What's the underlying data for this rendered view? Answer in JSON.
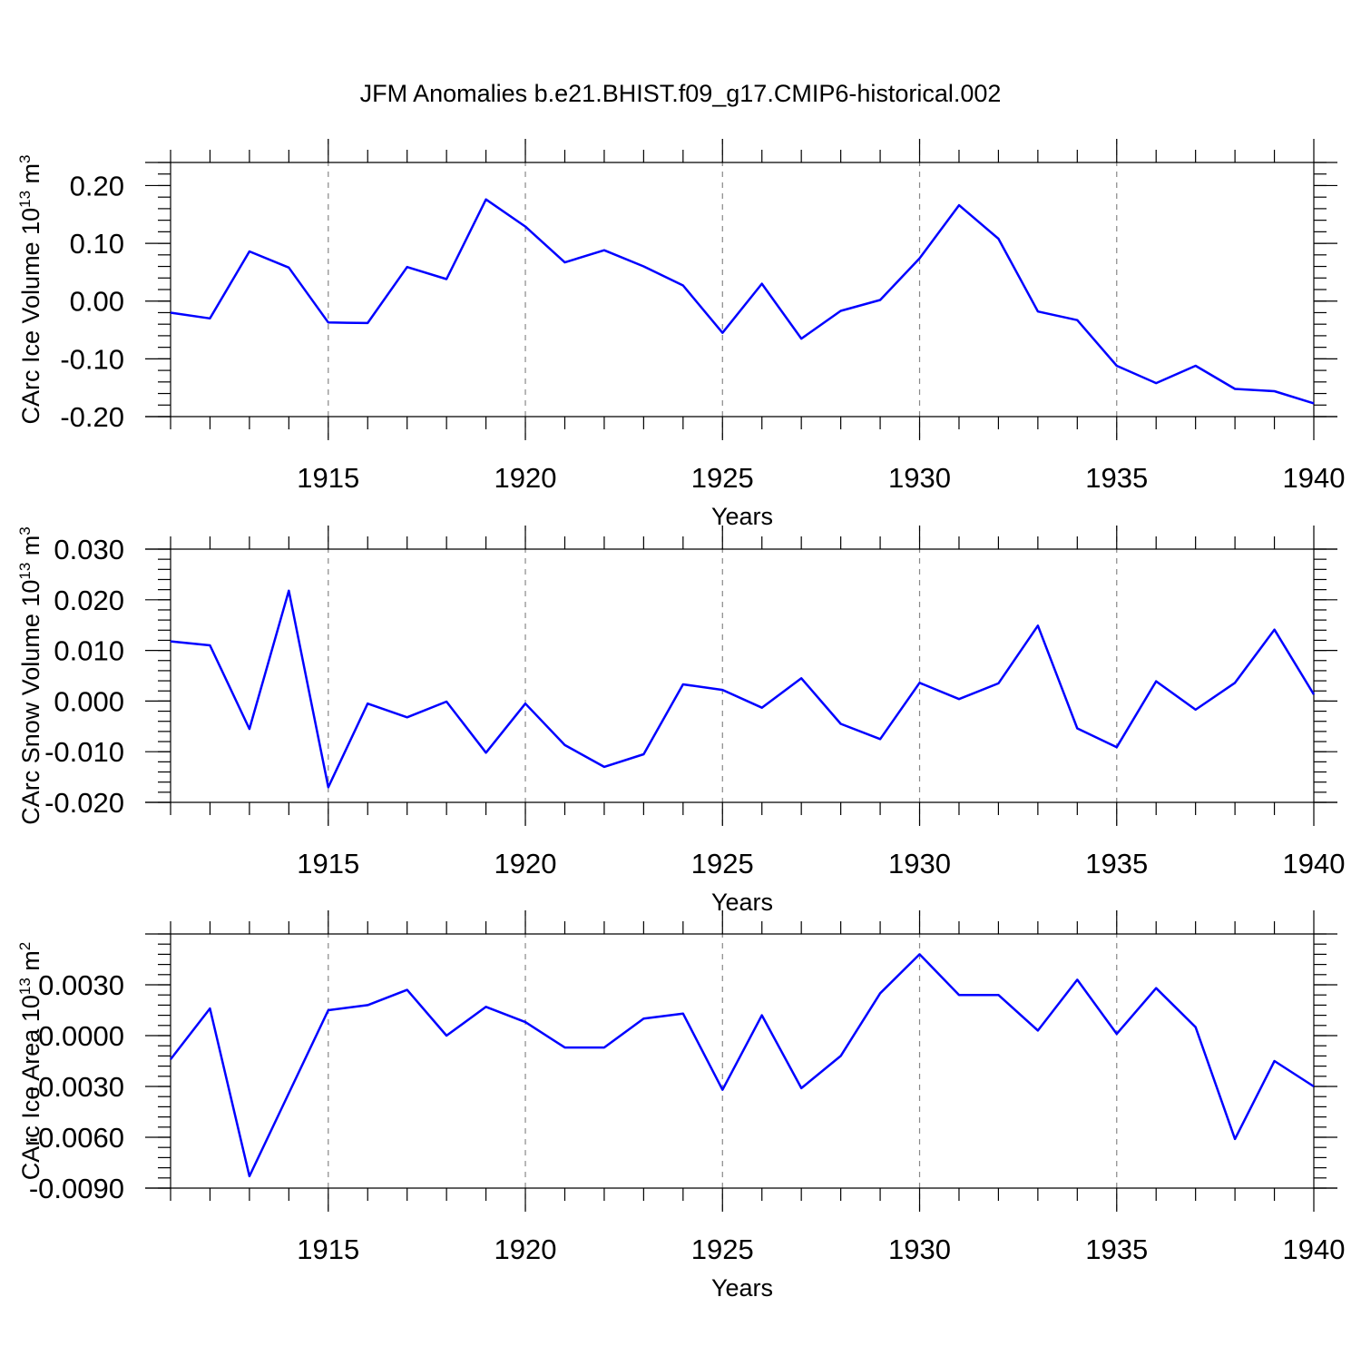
{
  "title": "JFM Anomalies b.e21.BHIST.f09_g17.CMIP6-historical.002",
  "chart_data": [
    {
      "type": "line",
      "name": "ice-volume",
      "ylabel": "CArc Ice Volume",
      "ylabel_unit": "10",
      "ylabel_exp": "13",
      "ylabel_unit2": " m",
      "ylabel_exp2": "3",
      "xlabel": "Years",
      "xlim": [
        1911,
        1940
      ],
      "ylim": [
        -0.2,
        0.24
      ],
      "yticks": [
        -0.2,
        -0.1,
        0.0,
        0.1,
        0.2
      ],
      "ytick_labels": [
        "-0.20",
        "-0.10",
        "0.00",
        "0.10",
        "0.20"
      ],
      "ytick_minor": 0.02,
      "xticks": [
        1915,
        1920,
        1925,
        1930,
        1935,
        1940
      ],
      "xtick_labels": [
        "1915",
        "1920",
        "1925",
        "1930",
        "1935",
        "1940"
      ],
      "x": [
        1911,
        1912,
        1913,
        1914,
        1915,
        1916,
        1917,
        1918,
        1919,
        1920,
        1921,
        1922,
        1923,
        1924,
        1925,
        1926,
        1927,
        1928,
        1929,
        1930,
        1931,
        1932,
        1933,
        1934,
        1935,
        1936,
        1937,
        1938,
        1939,
        1940
      ],
      "values": [
        -0.02,
        -0.03,
        0.086,
        0.058,
        -0.037,
        -0.038,
        0.059,
        0.038,
        0.176,
        0.129,
        0.067,
        0.088,
        0.06,
        0.027,
        -0.055,
        0.03,
        -0.065,
        -0.017,
        0.002,
        0.074,
        0.166,
        0.108,
        -0.018,
        -0.033,
        -0.112,
        -0.142,
        -0.112,
        -0.152,
        -0.156,
        -0.177
      ]
    },
    {
      "type": "line",
      "name": "snow-volume",
      "ylabel": "CArc Snow Volume",
      "ylabel_unit": "10",
      "ylabel_exp": "13",
      "ylabel_unit2": " m",
      "ylabel_exp2": "3",
      "xlabel": "Years",
      "xlim": [
        1911,
        1940
      ],
      "ylim": [
        -0.02,
        0.03
      ],
      "yticks": [
        -0.02,
        -0.01,
        0.0,
        0.01,
        0.02,
        0.03
      ],
      "ytick_labels": [
        "-0.020",
        "-0.010",
        "0.000",
        "0.010",
        "0.020",
        "0.030"
      ],
      "ytick_minor": 0.002,
      "xticks": [
        1915,
        1920,
        1925,
        1930,
        1935,
        1940
      ],
      "xtick_labels": [
        "1915",
        "1920",
        "1925",
        "1930",
        "1935",
        "1940"
      ],
      "x": [
        1911,
        1912,
        1913,
        1914,
        1915,
        1916,
        1917,
        1918,
        1919,
        1920,
        1921,
        1922,
        1923,
        1924,
        1925,
        1926,
        1927,
        1928,
        1929,
        1930,
        1931,
        1932,
        1933,
        1934,
        1935,
        1936,
        1937,
        1938,
        1939,
        1940
      ],
      "values": [
        0.0118,
        0.011,
        -0.0055,
        0.0218,
        -0.017,
        -0.0005,
        -0.0032,
        -0.0001,
        -0.0102,
        -0.0005,
        -0.0087,
        -0.013,
        -0.0105,
        0.0033,
        0.0022,
        -0.0013,
        0.0045,
        -0.0045,
        -0.0075,
        0.0036,
        0.0004,
        0.0035,
        0.0149,
        -0.0054,
        -0.0091,
        0.0039,
        -0.0017,
        0.0036,
        0.0141,
        0.0013
      ]
    },
    {
      "type": "line",
      "name": "ice-area",
      "ylabel": "CArc Ice Area",
      "ylabel_unit": "10",
      "ylabel_exp": "13",
      "ylabel_unit2": " m",
      "ylabel_exp2": "2",
      "xlabel": "Years",
      "xlim": [
        1911,
        1940
      ],
      "ylim": [
        -0.009,
        0.006
      ],
      "yticks": [
        -0.009,
        -0.006,
        -0.003,
        0.0,
        0.003
      ],
      "ytick_labels": [
        "-0.0090",
        "-0.0060",
        "-0.0030",
        "0.0000",
        "0.0030"
      ],
      "ytick_minor": 0.0006,
      "xticks": [
        1915,
        1920,
        1925,
        1930,
        1935,
        1940
      ],
      "xtick_labels": [
        "1915",
        "1920",
        "1925",
        "1930",
        "1935",
        "1940"
      ],
      "x": [
        1911,
        1912,
        1913,
        1914,
        1915,
        1916,
        1917,
        1918,
        1919,
        1920,
        1921,
        1922,
        1923,
        1924,
        1925,
        1926,
        1927,
        1928,
        1929,
        1930,
        1931,
        1932,
        1933,
        1934,
        1935,
        1936,
        1937,
        1938,
        1939,
        1940
      ],
      "values": [
        -0.0014,
        0.0016,
        -0.0083,
        -0.0034,
        0.0015,
        0.0018,
        0.0027,
        0.0,
        0.0017,
        0.0008,
        -0.0007,
        -0.0007,
        0.001,
        0.0013,
        -0.0032,
        0.0012,
        -0.0031,
        -0.0012,
        0.0025,
        0.0048,
        0.0024,
        0.0024,
        0.0003,
        0.0033,
        0.0001,
        0.0028,
        0.0005,
        -0.0061,
        -0.0015,
        -0.003
      ]
    }
  ]
}
